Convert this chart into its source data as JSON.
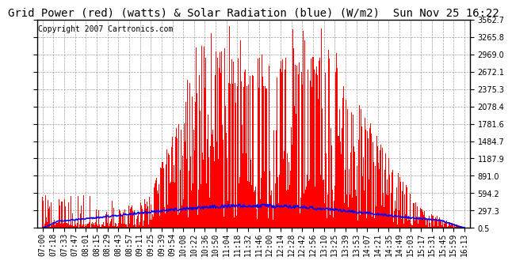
{
  "title": "Grid Power (red) (watts) & Solar Radiation (blue) (W/m2)  Sun Nov 25 16:22",
  "copyright": "Copyright 2007 Cartronics.com",
  "background_color": "#ffffff",
  "plot_bg_color": "#ffffff",
  "grid_color": "#aaaaaa",
  "y_ticks": [
    0.5,
    297.3,
    594.2,
    891.0,
    1187.9,
    1484.7,
    1781.6,
    2078.4,
    2375.3,
    2672.1,
    2969.0,
    3265.8,
    3562.7
  ],
  "x_labels": [
    "07:00",
    "07:18",
    "07:33",
    "07:47",
    "08:01",
    "08:15",
    "08:29",
    "08:43",
    "08:57",
    "09:11",
    "09:25",
    "09:39",
    "09:54",
    "10:08",
    "10:22",
    "10:36",
    "10:50",
    "11:04",
    "11:18",
    "11:32",
    "11:46",
    "12:00",
    "12:14",
    "12:28",
    "12:42",
    "12:56",
    "13:10",
    "13:25",
    "13:39",
    "13:53",
    "14:07",
    "14:21",
    "14:35",
    "14:49",
    "15:03",
    "15:17",
    "15:31",
    "15:45",
    "15:59",
    "16:13"
  ],
  "title_fontsize": 10,
  "tick_fontsize": 7,
  "copyright_fontsize": 7,
  "ylim_min": 0.5,
  "ylim_max": 3562.7
}
